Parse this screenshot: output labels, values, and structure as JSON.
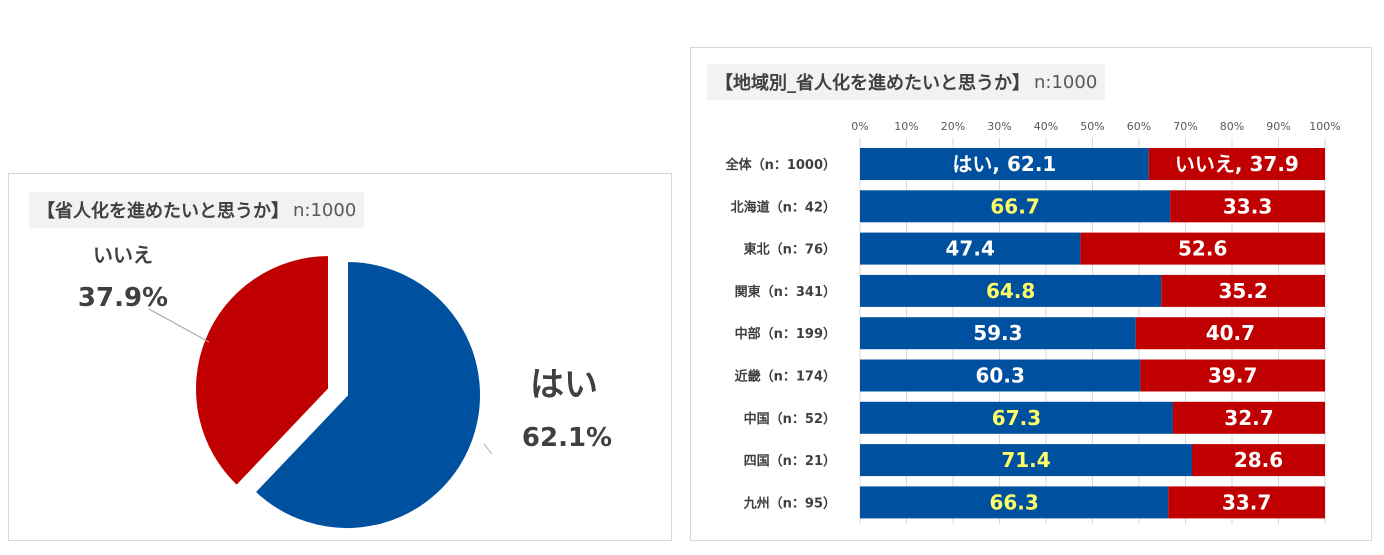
{
  "colors": {
    "yes": "#0050a0",
    "no": "#c00000",
    "yes_text_light": "#ffffff",
    "yes_text_highlight": "#ffff66",
    "no_text": "#ffffff"
  },
  "pie_panel": {
    "title_bold": "【省人化を進めたいと思うか】",
    "title_n": "n:1000"
  },
  "bar_panel": {
    "title_bold": "【地域別_省人化を進めたいと思うか】",
    "title_n": "n:1000"
  },
  "chart_data": [
    {
      "type": "pie",
      "title": "【省人化を進めたいと思うか】n:1000",
      "slices": [
        {
          "label": "はい",
          "value": 62.1,
          "value_label": "62.1%",
          "color": "#0050a0"
        },
        {
          "label": "いいえ",
          "value": 37.9,
          "value_label": "37.9%",
          "color": "#c00000"
        }
      ]
    },
    {
      "type": "bar",
      "orientation": "horizontal-stacked-100",
      "title": "【地域別_省人化を進めたいと思うか】n:1000",
      "xlim": [
        0,
        100
      ],
      "ticks": [
        "0%",
        "10%",
        "20%",
        "30%",
        "40%",
        "50%",
        "60%",
        "70%",
        "80%",
        "90%",
        "100%"
      ],
      "categories": [
        "全体（n：1000）",
        "北海道（n：42）",
        "東北（n：76）",
        "関東（n：341）",
        "中部（n：199）",
        "近畿（n：174）",
        "中国（n：52）",
        "四国（n：21）",
        "九州（n：95）"
      ],
      "series": [
        {
          "name": "はい",
          "color": "#0050a0",
          "values": [
            62.1,
            66.7,
            47.4,
            64.8,
            59.3,
            60.3,
            67.3,
            71.4,
            66.3
          ],
          "labels": [
            "はい, 62.1",
            "66.7",
            "47.4",
            "64.8",
            "59.3",
            "60.3",
            "67.3",
            "71.4",
            "66.3"
          ],
          "label_colors": [
            "#ffffff",
            "#ffff66",
            "#ffffff",
            "#ffff66",
            "#ffffff",
            "#ffffff",
            "#ffff66",
            "#ffff66",
            "#ffff66"
          ]
        },
        {
          "name": "いいえ",
          "color": "#c00000",
          "values": [
            37.9,
            33.3,
            52.6,
            35.2,
            40.7,
            39.7,
            32.7,
            28.6,
            33.7
          ],
          "labels": [
            "いいえ, 37.9",
            "33.3",
            "52.6",
            "35.2",
            "40.7",
            "39.7",
            "32.7",
            "28.6",
            "33.7"
          ]
        }
      ]
    }
  ]
}
